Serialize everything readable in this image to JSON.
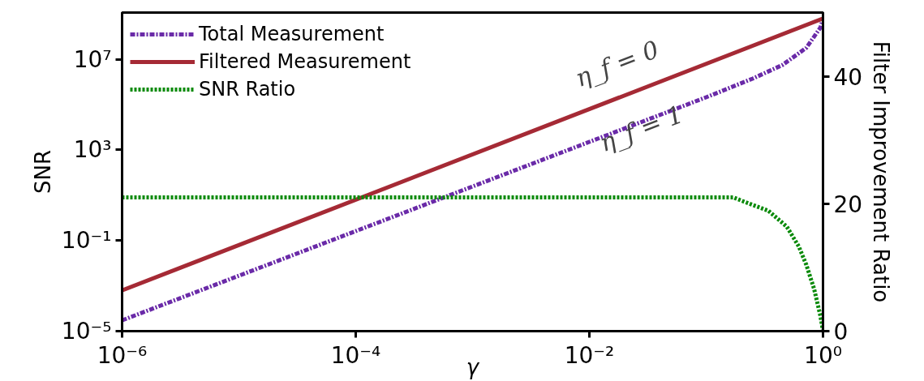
{
  "chart_data": {
    "type": "line",
    "xlabel": "γ",
    "ylabel": "SNR",
    "y2label": "Filter Improvement Ratio",
    "log": "xy",
    "grid": false,
    "legend": "top left",
    "xlim": [
      1e-06,
      1
    ],
    "xticks": [
      {
        "value": 1e-06,
        "label": "10⁻⁶"
      },
      {
        "value": 0.0001,
        "label": "10⁻⁴"
      },
      {
        "value": 0.01,
        "label": "10⁻²"
      },
      {
        "value": 1,
        "label": "10⁰"
      }
    ],
    "ylim": [
      1e-05,
      1150000000.0
    ],
    "yticks": [
      {
        "value": 1e-05,
        "label": "10⁻⁵"
      },
      {
        "value": 0.1,
        "label": "10⁻¹"
      },
      {
        "value": 1000,
        "label": "10³"
      },
      {
        "value": 10000000.0,
        "label": "10⁷"
      }
    ],
    "y2lim": [
      0,
      50
    ],
    "y2ticks": [
      0,
      20,
      40
    ],
    "series": [
      {
        "name": "Total Measurement",
        "color": "#6a2aa8",
        "line_style": "dashdot",
        "x": [
          1e-06,
          0.1,
          0.25,
          0.45,
          0.72,
          0.95,
          1
        ],
        "values": [
          3e-05,
          210000.0,
          1400000.0,
          5600000.0,
          32000000.0,
          250000000.0,
          630000000.0
        ]
      },
      {
        "name": "Filtered Measurement",
        "color": "#a52a35",
        "line_style": "solid",
        "x": [
          1e-06,
          1
        ],
        "values": [
          0.00063,
          630000000.0
        ]
      },
      {
        "name": "SNR Ratio",
        "color": "#0a8a0a",
        "line_style": "dotted",
        "axis": "y2",
        "x": [
          1e-06,
          0.17,
          0.22,
          0.34,
          0.49,
          0.62,
          0.72,
          0.84,
          0.95,
          1
        ],
        "values": [
          21,
          21,
          20.2,
          18.9,
          16.4,
          13.3,
          10.4,
          6.6,
          2.4,
          0
        ]
      }
    ],
    "annotations": [
      "η_f = 0",
      "η_f = 1"
    ]
  }
}
